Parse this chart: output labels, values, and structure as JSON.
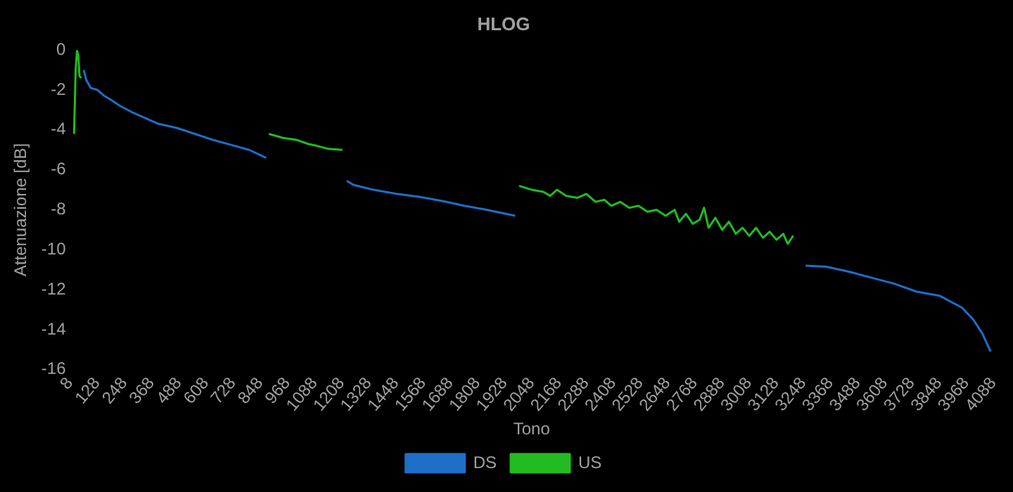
{
  "chart_data": {
    "type": "line",
    "title": "HLOG",
    "xlabel": "Tono",
    "ylabel": "Attenuazione [dB]",
    "xlim": [
      8,
      4088
    ],
    "xticks": [
      8,
      128,
      248,
      368,
      488,
      608,
      728,
      848,
      968,
      1088,
      1208,
      1328,
      1448,
      1568,
      1688,
      1808,
      1928,
      2048,
      2168,
      2288,
      2408,
      2528,
      2648,
      2768,
      2888,
      3008,
      3128,
      3248,
      3368,
      3488,
      3608,
      3728,
      3848,
      3968,
      4088
    ],
    "ylim": [
      -16,
      0
    ],
    "yticks": [
      -16,
      -14,
      -12,
      -10,
      -8,
      -6,
      -4,
      -2,
      0
    ],
    "grid": false,
    "legend": "bottom",
    "marker": "none",
    "line_style": "solid",
    "series": [
      {
        "name": "DS",
        "color": "#1e6fc8",
        "x": [
          69,
          80,
          100,
          130,
          160,
          190,
          230,
          280,
          340,
          400,
          480,
          560,
          640,
          720,
          800,
          875,
          880,
          1231,
          1260,
          1350,
          1450,
          1550,
          1650,
          1750,
          1850,
          1975,
          1980,
          3259,
          3350,
          3450,
          3550,
          3650,
          3750,
          3850,
          3950,
          4000,
          4040,
          4076
        ],
        "values": [
          -1.0,
          -1.5,
          -1.9,
          -2.0,
          -2.3,
          -2.5,
          -2.8,
          -3.1,
          -3.4,
          -3.7,
          -3.9,
          -4.2,
          -4.5,
          -4.75,
          -5.0,
          -5.4,
          null,
          -6.55,
          -6.75,
          -7.0,
          -7.2,
          -7.35,
          -7.55,
          -7.8,
          -8.0,
          -8.3,
          null,
          -10.8,
          -10.85,
          -11.1,
          -11.4,
          -11.7,
          -12.1,
          -12.3,
          -12.9,
          -13.5,
          -14.2,
          -15.1
        ]
      },
      {
        "name": "US",
        "color": "#22bb22",
        "x": [
          26,
          33,
          39,
          45,
          50,
          57,
          60,
          887,
          950,
          1010,
          1060,
          1100,
          1150,
          1212,
          1220,
          1993,
          2050,
          2100,
          2130,
          2160,
          2200,
          2250,
          2290,
          2330,
          2370,
          2400,
          2440,
          2480,
          2520,
          2560,
          2600,
          2640,
          2680,
          2700,
          2730,
          2760,
          2790,
          2810,
          2830,
          2860,
          2890,
          2920,
          2950,
          2980,
          3010,
          3040,
          3070,
          3100,
          3130,
          3160,
          3180,
          3204
        ],
        "values": [
          -4.2,
          -1.0,
          0,
          -0.3,
          -1.3,
          -1.4,
          null,
          -4.2,
          -4.4,
          -4.5,
          -4.7,
          -4.8,
          -4.95,
          -5.0,
          null,
          -6.8,
          -7.0,
          -7.1,
          -7.3,
          -7.0,
          -7.3,
          -7.4,
          -7.2,
          -7.6,
          -7.5,
          -7.8,
          -7.6,
          -7.9,
          -7.8,
          -8.1,
          -8.0,
          -8.3,
          -8.0,
          -8.6,
          -8.2,
          -8.7,
          -8.5,
          -7.9,
          -8.9,
          -8.4,
          -9.0,
          -8.6,
          -9.2,
          -8.9,
          -9.3,
          -8.9,
          -9.4,
          -9.1,
          -9.5,
          -9.2,
          -9.7,
          -9.3
        ]
      }
    ]
  }
}
